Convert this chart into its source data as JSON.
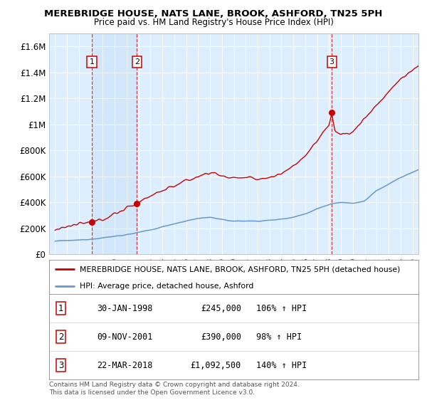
{
  "title": "MEREBRIDGE HOUSE, NATS LANE, BROOK, ASHFORD, TN25 5PH",
  "subtitle": "Price paid vs. HM Land Registry's House Price Index (HPI)",
  "property_label": "MEREBRIDGE HOUSE, NATS LANE, BROOK, ASHFORD, TN25 5PH (detached house)",
  "hpi_label": "HPI: Average price, detached house, Ashford",
  "sale_points": [
    {
      "label": "1",
      "date": "30-JAN-1998",
      "price": 245000,
      "hpi_pct": "106% ↑ HPI",
      "year": 1998.08
    },
    {
      "label": "2",
      "date": "09-NOV-2001",
      "price": 390000,
      "hpi_pct": "98% ↑ HPI",
      "year": 2001.86
    },
    {
      "label": "3",
      "date": "22-MAR-2018",
      "price": 1092500,
      "hpi_pct": "140% ↑ HPI",
      "year": 2018.22
    }
  ],
  "property_color": "#cc0000",
  "hpi_color": "#6699cc",
  "background_color": "#ffffff",
  "plot_bg_color": "#ddeeff",
  "grid_color": "#ffffff",
  "ylim": [
    0,
    1700000
  ],
  "yticks": [
    0,
    200000,
    400000,
    600000,
    800000,
    1000000,
    1200000,
    1400000,
    1600000
  ],
  "ytick_labels": [
    "£0",
    "£200K",
    "£400K",
    "£600K",
    "£800K",
    "£1M",
    "£1.2M",
    "£1.4M",
    "£1.6M"
  ],
  "xlim_start": 1994.5,
  "xlim_end": 2025.5,
  "footer_line1": "Contains HM Land Registry data © Crown copyright and database right 2024.",
  "footer_line2": "This data is licensed under the Open Government Licence v3.0."
}
